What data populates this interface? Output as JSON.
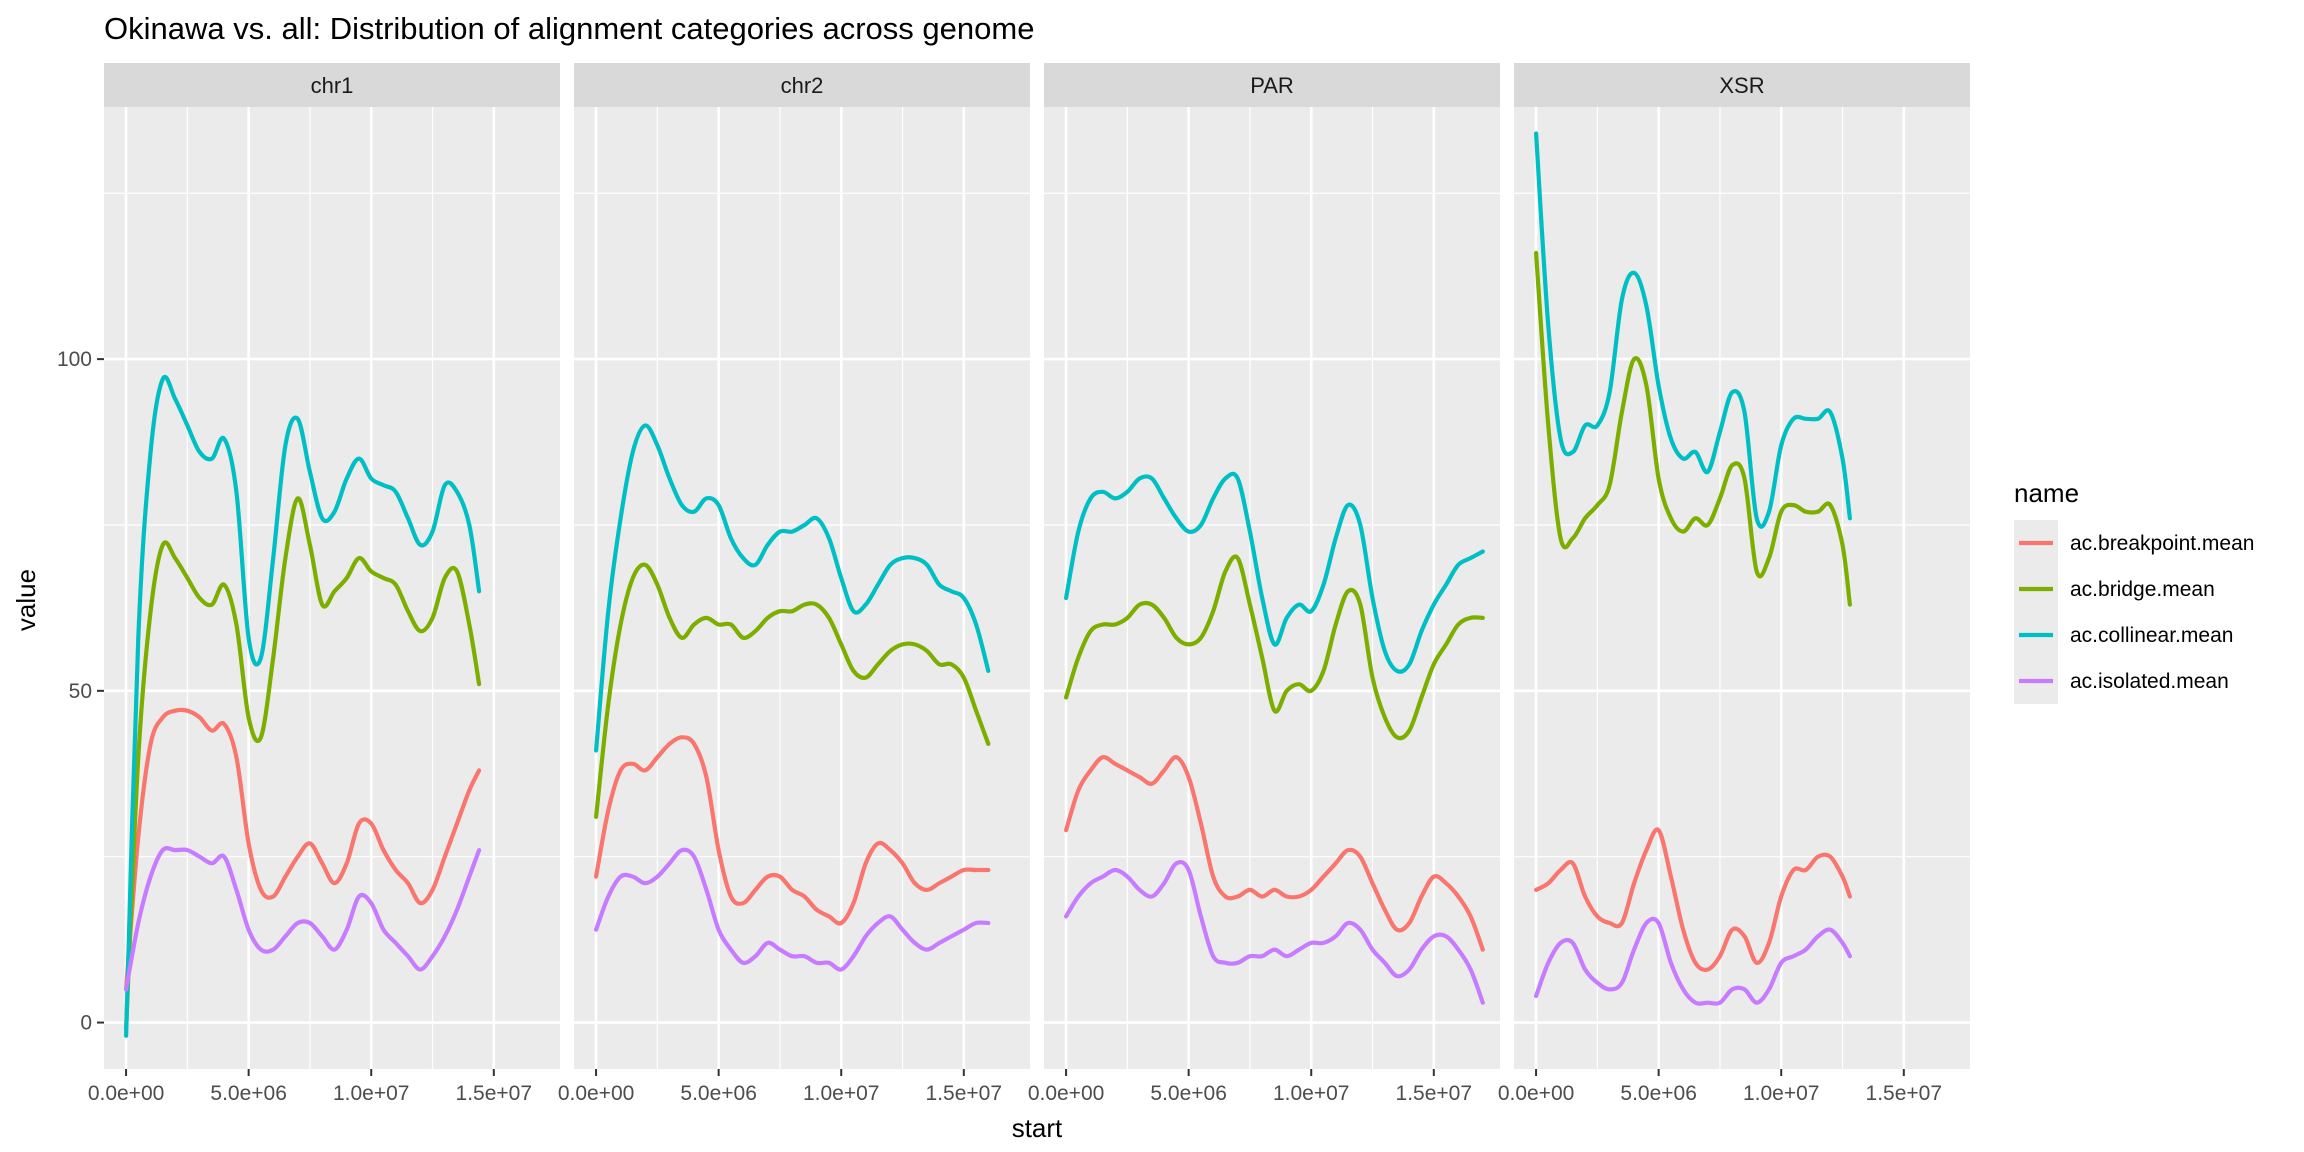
{
  "chart_data": {
    "type": "line",
    "title": "Okinawa vs. all: Distribution of alignment categories across genome",
    "xlabel": "start",
    "ylabel": "value",
    "facets": [
      "chr1",
      "chr2",
      "PAR",
      "XSR"
    ],
    "xlim": [
      -900000,
      17700000
    ],
    "ylim": [
      -7,
      138
    ],
    "x_ticks": [
      0,
      5000000,
      10000000,
      15000000
    ],
    "x_tick_labels": [
      "0.0e+00",
      "5.0e+06",
      "1.0e+07",
      "1.5e+07"
    ],
    "y_ticks": [
      0,
      50,
      100
    ],
    "y_tick_labels": [
      "0",
      "50",
      "100"
    ],
    "grid": true,
    "legend_title": "name",
    "legend_position": "right",
    "colors": [
      "#F8766D",
      "#7CAE00",
      "#00BFC4",
      "#C77CFF"
    ],
    "series_names": [
      "ac.breakpoint.mean",
      "ac.bridge.mean",
      "ac.collinear.mean",
      "ac.isolated.mean"
    ],
    "panels": [
      {
        "facet": "chr1",
        "x": [
          0,
          500000,
          1000000,
          1500000,
          2000000,
          2500000,
          3000000,
          3500000,
          4000000,
          4500000,
          5000000,
          5500000,
          6000000,
          6500000,
          7000000,
          7500000,
          8000000,
          8500000,
          9000000,
          9500000,
          10000000,
          10500000,
          11000000,
          11500000,
          12000000,
          12500000,
          13000000,
          13500000,
          14000000,
          14400000
        ],
        "series": [
          {
            "name": "ac.breakpoint.mean",
            "values": [
              5,
              28,
              42,
              46,
              47,
              47,
              46,
              44,
              45,
              40,
              27,
              20,
              19,
              22,
              25,
              27,
              24,
              21,
              24,
              30,
              30,
              26,
              23,
              21,
              18,
              20,
              25,
              30,
              35,
              38
            ]
          },
          {
            "name": "ac.bridge.mean",
            "values": [
              -1,
              40,
              62,
              72,
              70,
              67,
              64,
              63,
              66,
              60,
              46,
              43,
              55,
              70,
              79,
              72,
              63,
              65,
              67,
              70,
              68,
              67,
              66,
              62,
              59,
              61,
              67,
              68,
              60,
              51
            ]
          },
          {
            "name": "ac.collinear.mean",
            "values": [
              -2,
              58,
              86,
              97,
              94,
              90,
              86,
              85,
              88,
              80,
              58,
              55,
              70,
              87,
              91,
              83,
              76,
              77,
              82,
              85,
              82,
              81,
              80,
              76,
              72,
              74,
              81,
              80,
              75,
              65
            ]
          },
          {
            "name": "ac.isolated.mean",
            "values": [
              5,
              15,
              22,
              26,
              26,
              26,
              25,
              24,
              25,
              20,
              14,
              11,
              11,
              13,
              15,
              15,
              13,
              11,
              14,
              19,
              18,
              14,
              12,
              10,
              8,
              10,
              13,
              17,
              22,
              26
            ]
          }
        ]
      },
      {
        "facet": "chr2",
        "x": [
          0,
          500000,
          1000000,
          1500000,
          2000000,
          2500000,
          3000000,
          3500000,
          4000000,
          4500000,
          5000000,
          5500000,
          6000000,
          6500000,
          7000000,
          7500000,
          8000000,
          8500000,
          9000000,
          9500000,
          10000000,
          10500000,
          11000000,
          11500000,
          12000000,
          12500000,
          13000000,
          13500000,
          14000000,
          14500000,
          15000000,
          15500000,
          16000000
        ],
        "series": [
          {
            "name": "ac.breakpoint.mean",
            "values": [
              22,
              32,
              38,
              39,
              38,
              40,
              42,
              43,
              42,
              37,
              26,
              19,
              18,
              20,
              22,
              22,
              20,
              19,
              17,
              16,
              15,
              18,
              24,
              27,
              26,
              24,
              21,
              20,
              21,
              22,
              23,
              23,
              23
            ]
          },
          {
            "name": "ac.bridge.mean",
            "values": [
              31,
              48,
              60,
              67,
              69,
              66,
              61,
              58,
              60,
              61,
              60,
              60,
              58,
              59,
              61,
              62,
              62,
              63,
              63,
              61,
              57,
              53,
              52,
              54,
              56,
              57,
              57,
              56,
              54,
              54,
              52,
              47,
              42
            ]
          },
          {
            "name": "ac.collinear.mean",
            "values": [
              41,
              62,
              76,
              86,
              90,
              87,
              82,
              78,
              77,
              79,
              78,
              73,
              70,
              69,
              72,
              74,
              74,
              75,
              76,
              73,
              67,
              62,
              63,
              66,
              69,
              70,
              70,
              69,
              66,
              65,
              64,
              60,
              53
            ]
          },
          {
            "name": "ac.isolated.mean",
            "values": [
              14,
              19,
              22,
              22,
              21,
              22,
              24,
              26,
              25,
              20,
              14,
              11,
              9,
              10,
              12,
              11,
              10,
              10,
              9,
              9,
              8,
              10,
              13,
              15,
              16,
              14,
              12,
              11,
              12,
              13,
              14,
              15,
              15
            ]
          }
        ]
      },
      {
        "facet": "PAR",
        "x": [
          0,
          500000,
          1000000,
          1500000,
          2000000,
          2500000,
          3000000,
          3500000,
          4000000,
          4500000,
          5000000,
          5500000,
          6000000,
          6500000,
          7000000,
          7500000,
          8000000,
          8500000,
          9000000,
          9500000,
          10000000,
          10500000,
          11000000,
          11500000,
          12000000,
          12500000,
          13000000,
          13500000,
          14000000,
          14500000,
          15000000,
          15500000,
          16000000,
          16500000,
          17000000
        ],
        "series": [
          {
            "name": "ac.breakpoint.mean",
            "values": [
              29,
              35,
              38,
              40,
              39,
              38,
              37,
              36,
              38,
              40,
              37,
              30,
              22,
              19,
              19,
              20,
              19,
              20,
              19,
              19,
              20,
              22,
              24,
              26,
              25,
              21,
              17,
              14,
              15,
              19,
              22,
              21,
              19,
              16,
              11
            ]
          },
          {
            "name": "ac.bridge.mean",
            "values": [
              49,
              55,
              59,
              60,
              60,
              61,
              63,
              63,
              61,
              58,
              57,
              58,
              62,
              68,
              70,
              63,
              55,
              47,
              50,
              51,
              50,
              53,
              60,
              65,
              63,
              52,
              46,
              43,
              44,
              49,
              54,
              57,
              60,
              61,
              61
            ]
          },
          {
            "name": "ac.collinear.mean",
            "values": [
              64,
              74,
              79,
              80,
              79,
              80,
              82,
              82,
              79,
              76,
              74,
              75,
              79,
              82,
              82,
              74,
              64,
              57,
              61,
              63,
              62,
              66,
              73,
              78,
              75,
              64,
              56,
              53,
              54,
              59,
              63,
              66,
              69,
              70,
              71
            ]
          },
          {
            "name": "ac.isolated.mean",
            "values": [
              16,
              19,
              21,
              22,
              23,
              22,
              20,
              19,
              21,
              24,
              23,
              16,
              10,
              9,
              9,
              10,
              10,
              11,
              10,
              11,
              12,
              12,
              13,
              15,
              14,
              11,
              9,
              7,
              8,
              11,
              13,
              13,
              11,
              8,
              3
            ]
          }
        ]
      },
      {
        "facet": "XSR",
        "x": [
          0,
          500000,
          1000000,
          1500000,
          2000000,
          2500000,
          3000000,
          3500000,
          4000000,
          4500000,
          5000000,
          5500000,
          6000000,
          6500000,
          7000000,
          7500000,
          8000000,
          8500000,
          9000000,
          9500000,
          10000000,
          10500000,
          11000000,
          11500000,
          12000000,
          12500000,
          12800000
        ],
        "series": [
          {
            "name": "ac.breakpoint.mean",
            "values": [
              20,
              21,
              23,
              24,
              19,
              16,
              15,
              15,
              21,
              26,
              29,
              22,
              14,
              9,
              8,
              10,
              14,
              13,
              9,
              12,
              19,
              23,
              23,
              25,
              25,
              22,
              19
            ]
          },
          {
            "name": "ac.bridge.mean",
            "values": [
              116,
              90,
              73,
              73,
              76,
              78,
              81,
              92,
              100,
              96,
              82,
              76,
              74,
              76,
              75,
              79,
              84,
              82,
              68,
              70,
              77,
              78,
              77,
              77,
              78,
              72,
              63
            ]
          },
          {
            "name": "ac.collinear.mean",
            "values": [
              134,
              105,
              88,
              86,
              90,
              90,
              95,
              109,
              113,
              108,
              96,
              88,
              85,
              86,
              83,
              89,
              95,
              92,
              76,
              77,
              87,
              91,
              91,
              91,
              92,
              85,
              76
            ]
          },
          {
            "name": "ac.isolated.mean",
            "values": [
              4,
              9,
              12,
              12,
              8,
              6,
              5,
              6,
              11,
              15,
              15,
              9,
              5,
              3,
              3,
              3,
              5,
              5,
              3,
              5,
              9,
              10,
              11,
              13,
              14,
              12,
              10
            ]
          }
        ]
      }
    ]
  }
}
